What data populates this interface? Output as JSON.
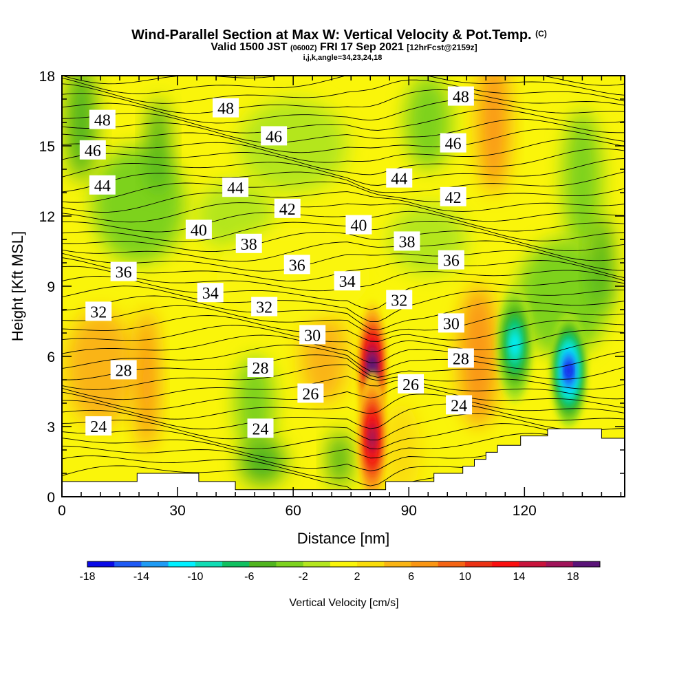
{
  "title": {
    "main": "Wind-Parallel Section at Max W: Vertical Velocity & Pot.Temp.",
    "copyright": "(C)",
    "valid_prefix": "Valid 1500 JST",
    "valid_z": "(0600Z)",
    "valid_date": "FRI 17 Sep 2021",
    "forecast": "[12hrFcst@2159z]",
    "indices": "i,j,k,angle=34,23,24,18"
  },
  "chart_data": {
    "type": "heatmap",
    "xlabel": "Distance [nm]",
    "ylabel": "Height [Kft MSL]",
    "xlim": [
      0,
      146
    ],
    "ylim": [
      0,
      18
    ],
    "x_ticks": [
      0,
      30,
      60,
      90,
      120
    ],
    "y_ticks": [
      0,
      3,
      6,
      9,
      12,
      15,
      18
    ],
    "colorbar": {
      "label": "Vertical Velocity [cm/s]",
      "min": -18,
      "max": 20,
      "step": 2,
      "tick_values": [
        -18,
        -14,
        -10,
        -6,
        -2,
        2,
        6,
        10,
        14,
        18
      ],
      "colors": [
        "#0a0ae6",
        "#1e5af5",
        "#1e9bf5",
        "#00f0ff",
        "#10dcb4",
        "#10c060",
        "#50b41e",
        "#7dd21e",
        "#b4e61e",
        "#faf50a",
        "#fadc0a",
        "#fab414",
        "#fa9614",
        "#f56414",
        "#eb3214",
        "#fa0f0f",
        "#c8143c",
        "#a0145a",
        "#5a1478"
      ]
    },
    "potential_temperature_contour_labels": [
      {
        "value": "48",
        "x": 10.5,
        "y": 16.1
      },
      {
        "value": "48",
        "x": 42.5,
        "y": 16.6
      },
      {
        "value": "48",
        "x": 103.5,
        "y": 17.1
      },
      {
        "value": "46",
        "x": 8,
        "y": 14.8
      },
      {
        "value": "46",
        "x": 55,
        "y": 15.4
      },
      {
        "value": "46",
        "x": 101.5,
        "y": 15.1
      },
      {
        "value": "44",
        "x": 10.5,
        "y": 13.3
      },
      {
        "value": "44",
        "x": 45,
        "y": 13.2
      },
      {
        "value": "44",
        "x": 87.5,
        "y": 13.6
      },
      {
        "value": "42",
        "x": 58.5,
        "y": 12.3
      },
      {
        "value": "42",
        "x": 101.5,
        "y": 12.8
      },
      {
        "value": "40",
        "x": 35.5,
        "y": 11.4
      },
      {
        "value": "40",
        "x": 77,
        "y": 11.6
      },
      {
        "value": "38",
        "x": 48.5,
        "y": 10.8
      },
      {
        "value": "38",
        "x": 89.5,
        "y": 10.9
      },
      {
        "value": "36",
        "x": 16,
        "y": 9.6
      },
      {
        "value": "36",
        "x": 61,
        "y": 9.9
      },
      {
        "value": "36",
        "x": 101,
        "y": 10.1
      },
      {
        "value": "34",
        "x": 38.5,
        "y": 8.7
      },
      {
        "value": "34",
        "x": 74,
        "y": 9.2
      },
      {
        "value": "32",
        "x": 9.5,
        "y": 7.9
      },
      {
        "value": "32",
        "x": 52.5,
        "y": 8.1
      },
      {
        "value": "32",
        "x": 87.5,
        "y": 8.4
      },
      {
        "value": "30",
        "x": 65,
        "y": 6.9
      },
      {
        "value": "30",
        "x": 101,
        "y": 7.4
      },
      {
        "value": "28",
        "x": 16,
        "y": 5.4
      },
      {
        "value": "28",
        "x": 51.5,
        "y": 5.5
      },
      {
        "value": "28",
        "x": 103.5,
        "y": 5.9
      },
      {
        "value": "26",
        "x": 64.5,
        "y": 4.4
      },
      {
        "value": "26",
        "x": 90.5,
        "y": 4.8
      },
      {
        "value": "24",
        "x": 9.5,
        "y": 3.0
      },
      {
        "value": "24",
        "x": 51.5,
        "y": 2.9
      },
      {
        "value": "24",
        "x": 103,
        "y": 3.9
      }
    ],
    "vertical_velocity_features": [
      {
        "kind": "updraft",
        "x": 80.5,
        "y": 5.5,
        "peak": 20
      },
      {
        "kind": "updraft",
        "x": 80.5,
        "y": 2.5,
        "peak": 16
      },
      {
        "kind": "downdraft",
        "x": 117.5,
        "y": 6.5,
        "peak": -11
      },
      {
        "kind": "downdraft",
        "x": 131.5,
        "y": 5.4,
        "peak": -17
      }
    ],
    "terrain_kft": [
      [
        0,
        0.65
      ],
      [
        19.5,
        0.65
      ],
      [
        19.5,
        1.0
      ],
      [
        35.5,
        1.0
      ],
      [
        35.5,
        0.65
      ],
      [
        45,
        0.65
      ],
      [
        45,
        0.3
      ],
      [
        84,
        0.3
      ],
      [
        84,
        0.65
      ],
      [
        96.5,
        0.65
      ],
      [
        96.5,
        1.0
      ],
      [
        104,
        1.0
      ],
      [
        104,
        1.3
      ],
      [
        107,
        1.3
      ],
      [
        107,
        1.6
      ],
      [
        110,
        1.6
      ],
      [
        110,
        1.9
      ],
      [
        113,
        1.9
      ],
      [
        113,
        2.2
      ],
      [
        119,
        2.2
      ],
      [
        119,
        2.6
      ],
      [
        126,
        2.6
      ],
      [
        126,
        2.9
      ],
      [
        140,
        2.9
      ],
      [
        140,
        2.5
      ],
      [
        146,
        2.5
      ]
    ]
  }
}
